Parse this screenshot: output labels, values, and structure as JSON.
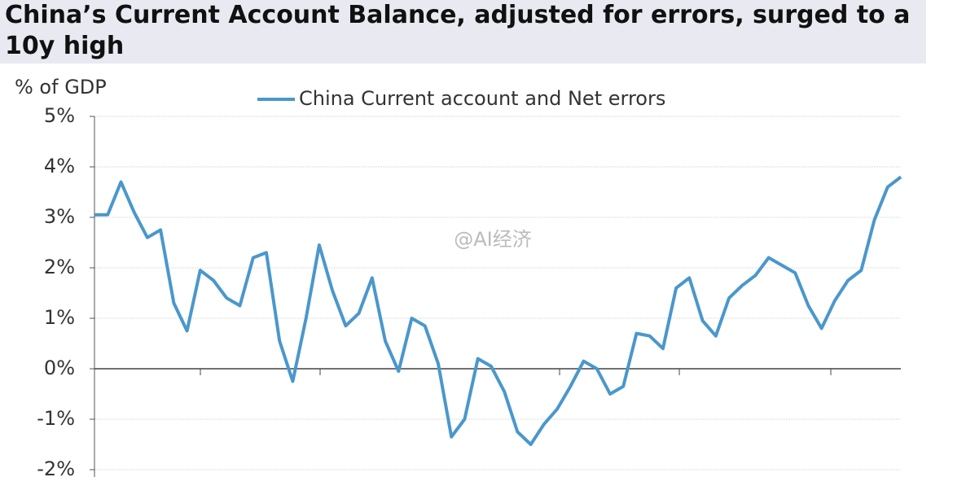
{
  "chart_data": {
    "type": "line",
    "title": "China’s Current Account Balance, adjusted for errors, surged to a 10y high",
    "y_label": "% of GDP",
    "watermark": "@AI经济",
    "series": [
      {
        "name": "China Current account and Net errors",
        "color": "#4a97cc",
        "values": [
          3.05,
          3.05,
          3.7,
          3.1,
          2.6,
          2.75,
          1.3,
          0.75,
          1.95,
          1.75,
          1.4,
          1.25,
          2.2,
          2.3,
          0.55,
          -0.25,
          1.0,
          2.45,
          1.55,
          0.85,
          1.1,
          1.8,
          0.55,
          -0.05,
          1.0,
          0.85,
          0.1,
          -1.35,
          -1.0,
          0.2,
          0.05,
          -0.45,
          -1.25,
          -1.5,
          -1.1,
          -0.8,
          -0.35,
          0.15,
          0.0,
          -0.5,
          -0.35,
          0.7,
          0.65,
          0.4,
          1.6,
          1.8,
          0.95,
          0.65,
          1.4,
          1.65,
          1.85,
          2.2,
          2.05,
          1.9,
          1.25,
          0.8,
          1.35,
          1.75,
          1.95,
          2.95,
          3.6,
          3.8
        ]
      }
    ],
    "ylim": [
      -2,
      5
    ],
    "yticks": [
      {
        "value": 5,
        "label": "5%"
      },
      {
        "value": 4,
        "label": "4%"
      },
      {
        "value": 3,
        "label": "3%"
      },
      {
        "value": 2,
        "label": "2%"
      },
      {
        "value": 1,
        "label": "1%"
      },
      {
        "value": 0,
        "label": "0%"
      },
      {
        "value": -1,
        "label": "-1%"
      },
      {
        "value": -2,
        "label": "-2%"
      }
    ],
    "grid": true
  }
}
